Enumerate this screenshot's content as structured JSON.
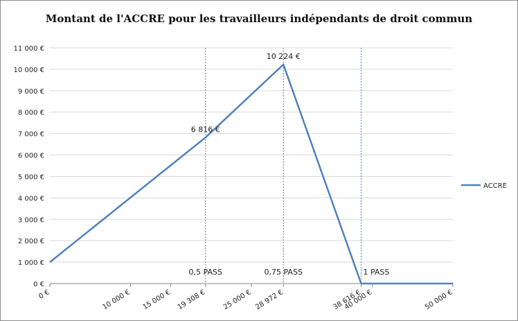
{
  "chart_data": {
    "type": "line",
    "title": "Montant de l'ACCRE pour les travailleurs indépendants de droit commun",
    "xlabel": "",
    "ylabel": "",
    "xlim": [
      0,
      50000
    ],
    "ylim": [
      0,
      11000
    ],
    "x_ticks": [
      0,
      10000,
      15000,
      19308,
      25000,
      28972,
      38616,
      40000,
      50000
    ],
    "x_tick_labels": [
      "0 €",
      "10 000 €",
      "15 000 €",
      "19 308 €",
      "25 000 €",
      "28 972 €",
      "38 616 €",
      "40 000 €",
      "50 000 €"
    ],
    "y_ticks": [
      0,
      1000,
      2000,
      3000,
      4000,
      5000,
      6000,
      7000,
      8000,
      9000,
      10000,
      11000
    ],
    "y_tick_labels": [
      "0 €",
      "1 000 €",
      "2 000 €",
      "3 000 €",
      "4 000 €",
      "5 000 €",
      "6 000 €",
      "7 000 €",
      "8 000 €",
      "9 000 €",
      "10 000 €",
      "11 000 €"
    ],
    "grid": "horizontal",
    "legend": "right",
    "colors": {
      "series": "#4f81bd",
      "grid": "#d9d9d9",
      "axis": "#868686"
    },
    "series": [
      {
        "name": "ACCRE",
        "x": [
          0,
          19308,
          28972,
          38616,
          50000
        ],
        "y": [
          1000,
          6816,
          10224,
          0,
          0
        ]
      }
    ],
    "point_labels": [
      {
        "x": 19308,
        "y": 6816,
        "text": "6 816 €"
      },
      {
        "x": 28972,
        "y": 10224,
        "text": "10 224 €"
      }
    ],
    "reference_lines": [
      {
        "x": 19308,
        "label": "0,5 PASS"
      },
      {
        "x": 28972,
        "label": "0,75 PASS"
      },
      {
        "x": 38616,
        "label": "1 PASS"
      }
    ]
  }
}
